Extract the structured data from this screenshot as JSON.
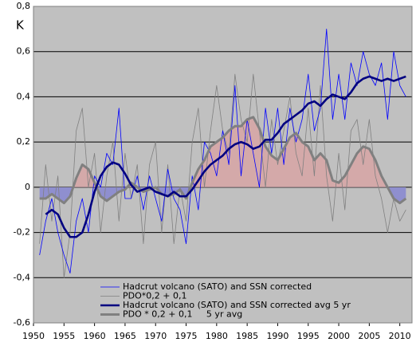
{
  "chart_data": {
    "type": "line",
    "y_label": "K",
    "x": [
      1951,
      1952,
      1953,
      1954,
      1955,
      1956,
      1957,
      1958,
      1959,
      1960,
      1961,
      1962,
      1963,
      1964,
      1965,
      1966,
      1967,
      1968,
      1969,
      1970,
      1971,
      1972,
      1973,
      1974,
      1975,
      1976,
      1977,
      1978,
      1979,
      1980,
      1981,
      1982,
      1983,
      1984,
      1985,
      1986,
      1987,
      1988,
      1989,
      1990,
      1991,
      1992,
      1993,
      1994,
      1995,
      1996,
      1997,
      1998,
      1999,
      2000,
      2001,
      2002,
      2003,
      2004,
      2005,
      2006,
      2007,
      2008,
      2009,
      2010,
      2011
    ],
    "series": [
      {
        "name": "Hadcrut volcano (SATO) and SSN corrected",
        "color": "#0000ff",
        "values": [
          -0.3,
          -0.15,
          -0.05,
          -0.2,
          -0.3,
          -0.38,
          -0.15,
          -0.05,
          -0.2,
          0.05,
          0.0,
          0.15,
          0.1,
          0.35,
          -0.05,
          -0.05,
          0.05,
          -0.1,
          0.05,
          -0.05,
          -0.15,
          0.08,
          -0.05,
          -0.1,
          -0.25,
          0.05,
          -0.1,
          0.2,
          0.15,
          0.05,
          0.25,
          0.1,
          0.45,
          0.05,
          0.3,
          0.15,
          0.0,
          0.35,
          0.15,
          0.35,
          0.1,
          0.35,
          0.2,
          0.3,
          0.5,
          0.25,
          0.35,
          0.7,
          0.3,
          0.5,
          0.3,
          0.55,
          0.45,
          0.6,
          0.5,
          0.45,
          0.55,
          0.3,
          0.6,
          0.45,
          0.4
        ]
      },
      {
        "name": "PDO*0,2 + 0,1",
        "color": "#808080",
        "values": [
          -0.25,
          0.1,
          -0.15,
          0.05,
          -0.4,
          -0.2,
          0.25,
          0.35,
          0.0,
          0.15,
          -0.2,
          0.05,
          0.2,
          -0.15,
          0.15,
          -0.05,
          0.1,
          -0.25,
          0.1,
          0.2,
          -0.2,
          0.1,
          -0.25,
          0.0,
          -0.15,
          0.2,
          0.35,
          0.0,
          0.25,
          0.45,
          0.25,
          0.15,
          0.5,
          0.3,
          0.2,
          0.5,
          0.25,
          0.0,
          0.3,
          0.1,
          0.25,
          0.4,
          0.15,
          0.05,
          0.35,
          0.05,
          0.45,
          0.05,
          -0.15,
          0.15,
          -0.1,
          0.25,
          0.3,
          0.1,
          0.3,
          0.05,
          -0.05,
          -0.2,
          -0.05,
          -0.15,
          -0.1
        ]
      },
      {
        "name": "Hadcrut volcano (SATO) and SSN corrected avg 5 yr",
        "color": "#000080",
        "values": [
          null,
          -0.12,
          -0.1,
          -0.12,
          -0.18,
          -0.22,
          -0.22,
          -0.2,
          -0.12,
          -0.02,
          0.05,
          0.09,
          0.11,
          0.1,
          0.06,
          0.01,
          -0.02,
          -0.01,
          0.0,
          -0.02,
          -0.03,
          -0.04,
          -0.02,
          -0.04,
          -0.04,
          -0.01,
          0.03,
          0.07,
          0.1,
          0.12,
          0.14,
          0.17,
          0.19,
          0.2,
          0.19,
          0.17,
          0.18,
          0.21,
          0.21,
          0.24,
          0.28,
          0.3,
          0.32,
          0.34,
          0.37,
          0.38,
          0.36,
          0.39,
          0.41,
          0.4,
          0.39,
          0.42,
          0.46,
          0.48,
          0.49,
          0.48,
          0.47,
          0.48,
          0.47,
          0.48,
          0.49
        ]
      },
      {
        "name": "PDO * 0,2 + 0,1     5 yr avg",
        "color": "#808080",
        "fill_above": "#d4a9a9",
        "fill_below": "#8f8fcf",
        "values": [
          -0.05,
          -0.05,
          -0.03,
          -0.05,
          -0.07,
          -0.04,
          0.04,
          0.1,
          0.08,
          0.02,
          -0.04,
          -0.06,
          -0.04,
          -0.02,
          -0.01,
          0.02,
          0.0,
          -0.02,
          -0.01,
          0.0,
          -0.03,
          -0.04,
          -0.03,
          -0.01,
          -0.05,
          0.02,
          0.08,
          0.12,
          0.18,
          0.2,
          0.22,
          0.25,
          0.27,
          0.27,
          0.3,
          0.31,
          0.26,
          0.18,
          0.14,
          0.12,
          0.17,
          0.22,
          0.24,
          0.2,
          0.18,
          0.12,
          0.15,
          0.12,
          0.03,
          0.02,
          0.05,
          0.1,
          0.15,
          0.18,
          0.17,
          0.12,
          0.05,
          0.0,
          -0.05,
          -0.07,
          -0.05
        ]
      }
    ],
    "xlim": [
      1950,
      2012
    ],
    "xticks": [
      1950,
      1955,
      1960,
      1965,
      1970,
      1975,
      1980,
      1985,
      1990,
      1995,
      2000,
      2005,
      2010
    ],
    "ylim": [
      -0.6,
      0.8
    ],
    "yticks": [
      {
        "value": -0.6,
        "label": "-0,6"
      },
      {
        "value": -0.4,
        "label": "-0,4"
      },
      {
        "value": -0.2,
        "label": "-0,2"
      },
      0,
      {
        "value": 0.2,
        "label": "0,2"
      },
      {
        "value": 0.4,
        "label": "0,4"
      },
      {
        "value": 0.6,
        "label": "0,6"
      },
      {
        "value": 0.8,
        "label": "0,8"
      }
    ],
    "grid": true,
    "legend": "lower center"
  }
}
